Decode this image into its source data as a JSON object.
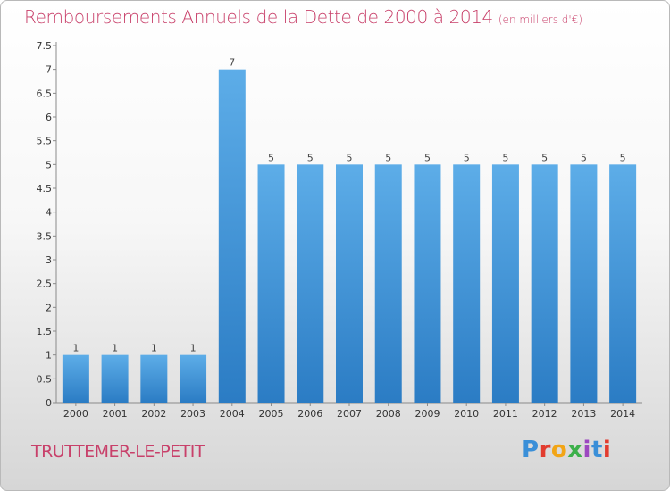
{
  "page": {
    "title": "Remboursements Annuels de la Dette de 2000 à 2014",
    "title_unit": "(en milliers d'€)",
    "commune": "TRUTTEMER-LE-PETIT",
    "logo": "Proxiti",
    "colors": {
      "title": "#c8406a",
      "bar_light": "#5dade8",
      "bar_dark": "#2b7cc4",
      "logo_letters": [
        "#3a8fd8",
        "#e23c2f",
        "#f2a516",
        "#3cb04a",
        "#9c48c0",
        "#3a8fd8",
        "#e23c2f"
      ]
    }
  },
  "chart_data": {
    "type": "bar",
    "title": "Remboursements Annuels de la Dette de 2000 à 2014",
    "unit": "(en milliers d'€)",
    "categories": [
      "2000",
      "2001",
      "2002",
      "2003",
      "2004",
      "2005",
      "2006",
      "2007",
      "2008",
      "2009",
      "2010",
      "2011",
      "2012",
      "2013",
      "2014"
    ],
    "values": [
      1,
      1,
      1,
      1,
      7,
      5,
      5,
      5,
      5,
      5,
      5,
      5,
      5,
      5,
      5
    ],
    "value_labels": [
      "1",
      "1",
      "1",
      "1",
      "7",
      "5",
      "5",
      "5",
      "5",
      "5",
      "5",
      "5",
      "5",
      "5",
      "5"
    ],
    "ylim": [
      0,
      7.5
    ],
    "yticks": [
      "0",
      "0.5",
      "1",
      "1.5",
      "2",
      "2.5",
      "3",
      "3.5",
      "4",
      "4.5",
      "5",
      "5.5",
      "6",
      "6.5",
      "7",
      "7.5"
    ],
    "ytick_values": [
      0,
      0.5,
      1,
      1.5,
      2,
      2.5,
      3,
      3.5,
      4,
      4.5,
      5,
      5.5,
      6,
      6.5,
      7,
      7.5
    ],
    "grid": false,
    "legend": "none"
  }
}
